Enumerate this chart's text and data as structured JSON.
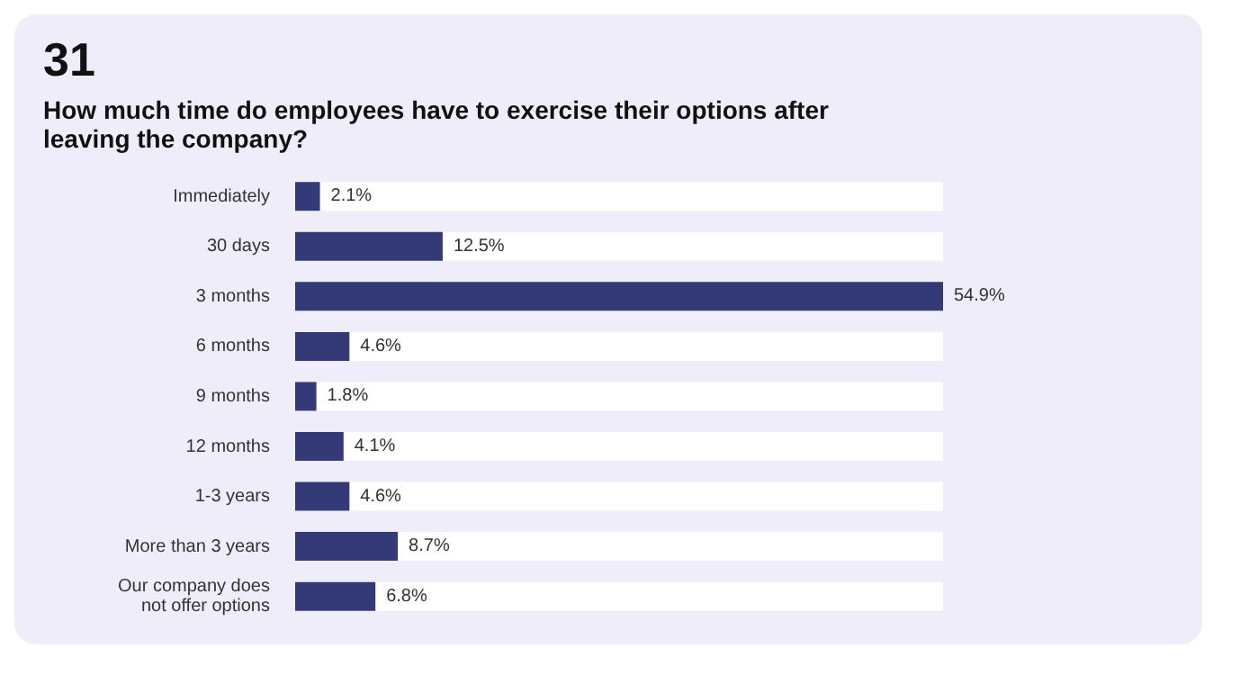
{
  "chart_data": {
    "type": "bar",
    "orientation": "horizontal",
    "title": "31",
    "subtitle": "How much time do employees have to exercise their options after leaving the company?",
    "categories": [
      "Immediately",
      "30 days",
      "3 months",
      "6 months",
      "9 months",
      "12 months",
      "1-3 years",
      "More than 3 years",
      "Our company does not offer options"
    ],
    "values": [
      2.1,
      12.5,
      54.9,
      4.6,
      1.8,
      4.1,
      4.6,
      8.7,
      6.8
    ],
    "value_labels": [
      "2.1%",
      "12.5%",
      "54.9%",
      "4.6%",
      "1.8%",
      "4.1%",
      "4.6%",
      "8.7%",
      "6.8%"
    ],
    "color": "#343a78"
  }
}
